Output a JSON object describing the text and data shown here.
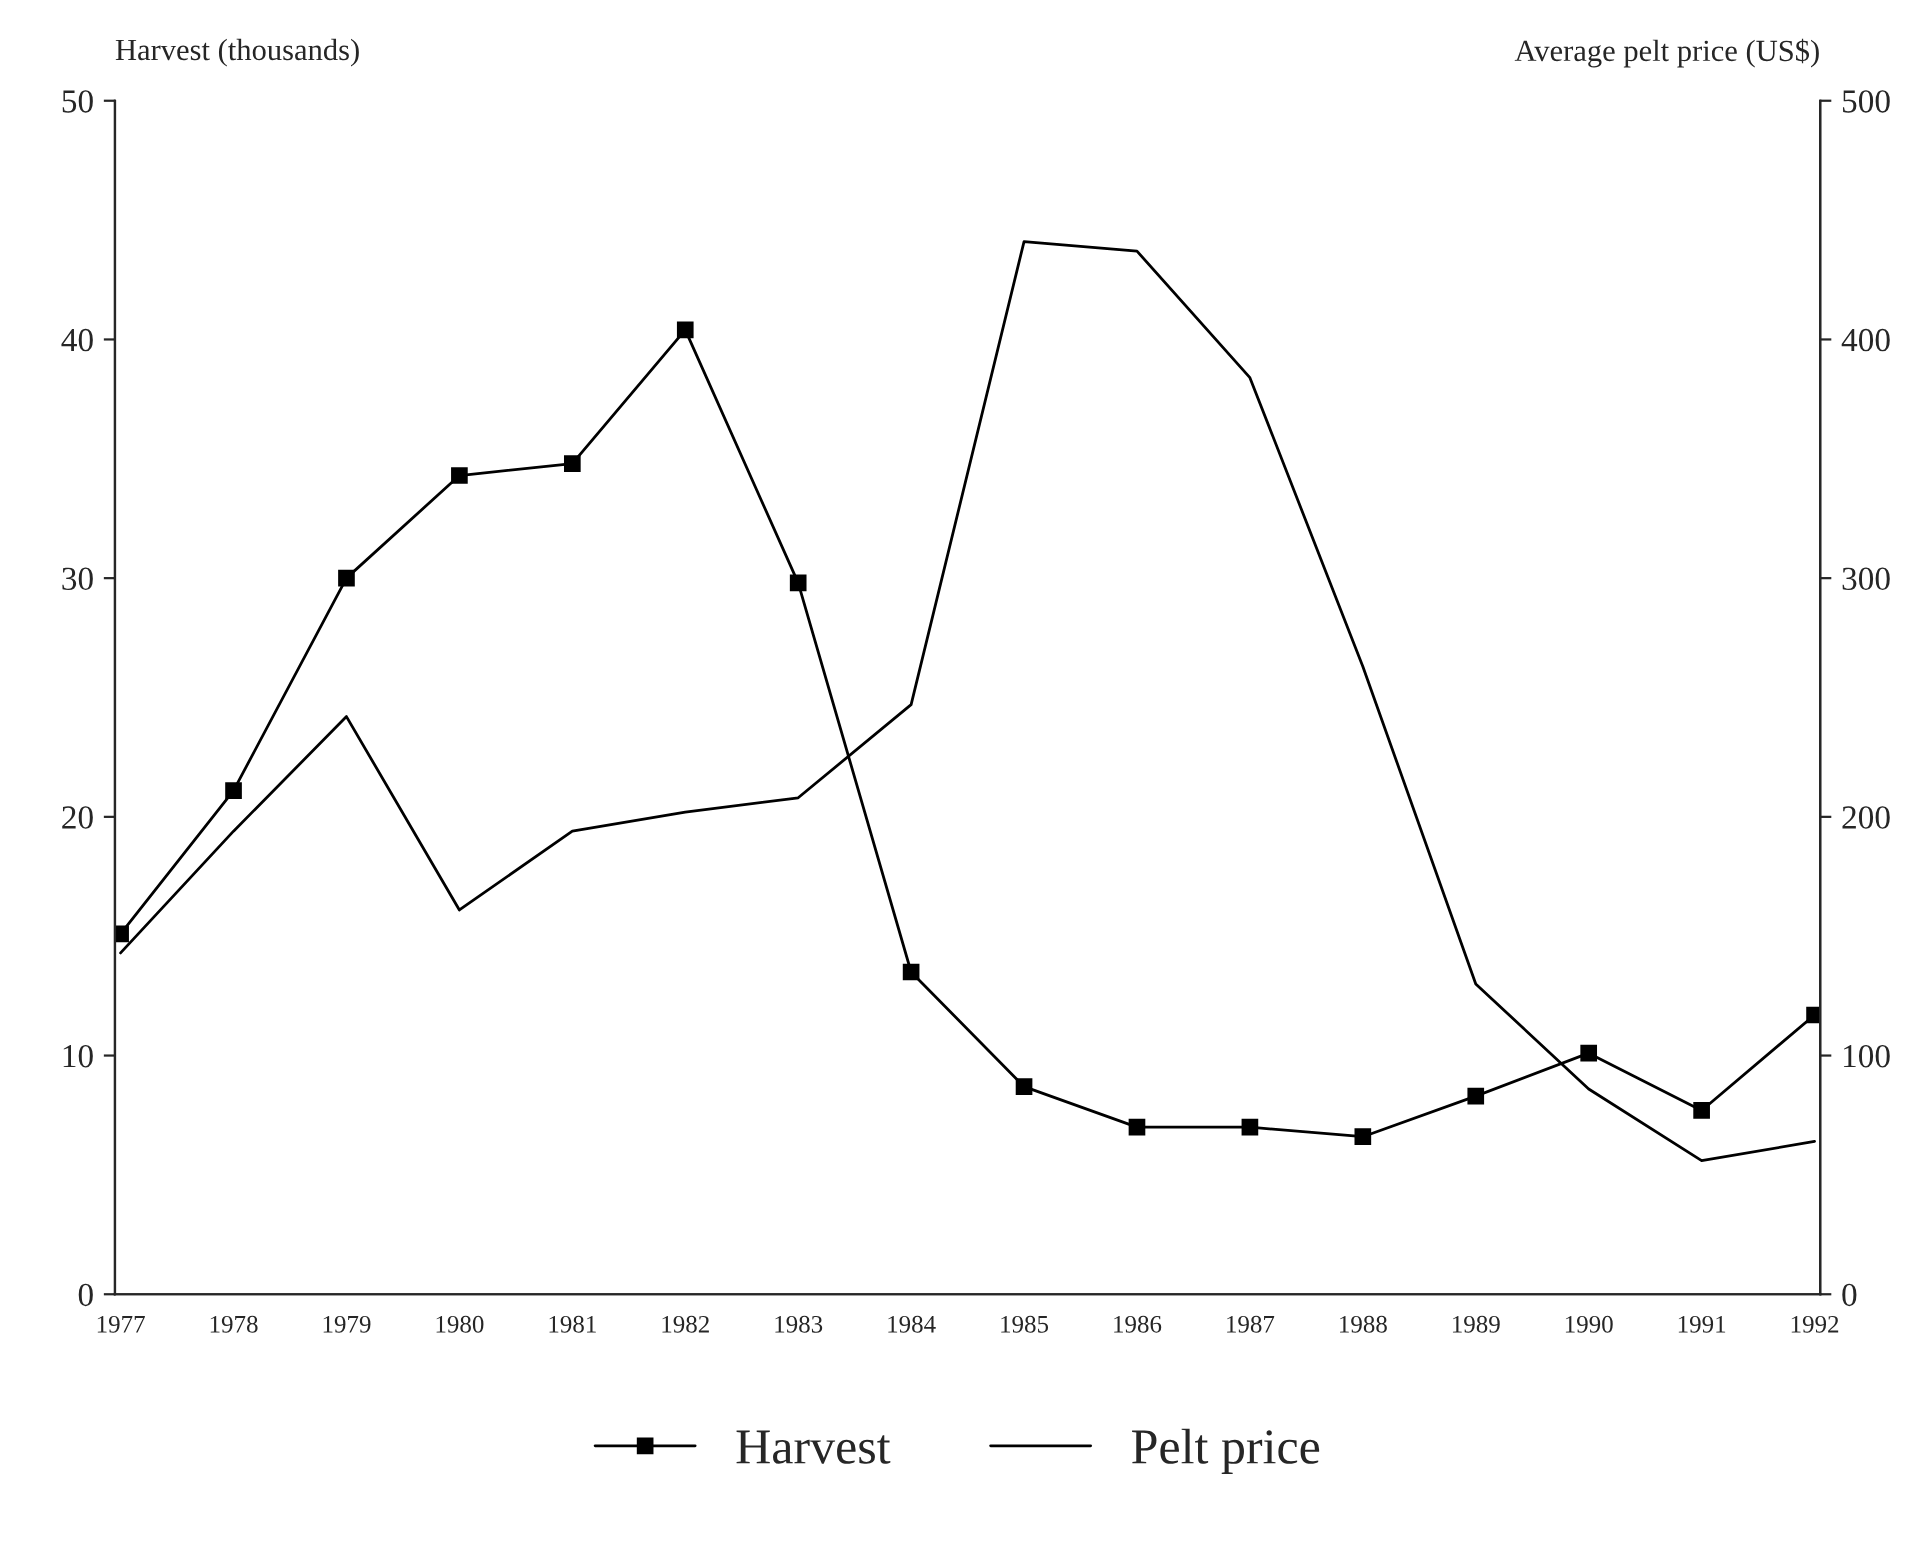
{
  "chart_data": {
    "type": "line",
    "ylabel": "Harvest (thousands)",
    "y2label": "Average pelt price (US$)",
    "categories": [
      "1977",
      "1978",
      "1979",
      "1980",
      "1981",
      "1982",
      "1983",
      "1984",
      "1985",
      "1986",
      "1987",
      "1988",
      "1989",
      "1990",
      "1991",
      "1992"
    ],
    "series": [
      {
        "name": "Harvest",
        "color": "#000000",
        "marker": "square",
        "values": [
          15.1,
          21.1,
          30.0,
          34.3,
          34.8,
          40.4,
          29.8,
          13.5,
          8.7,
          7.0,
          7.0,
          6.6,
          8.3,
          10.1,
          7.7,
          11.7
        ]
      },
      {
        "name": "Pelt price",
        "color": "#000000",
        "marker": "none",
        "axis": "y2",
        "values": [
          143,
          194,
          242,
          161,
          194,
          202,
          208,
          247,
          441,
          437,
          384,
          263,
          130,
          86,
          56,
          64
        ]
      }
    ],
    "ylim": [
      0,
      50
    ],
    "yticks": [
      0,
      10,
      20,
      30,
      40,
      50
    ],
    "y2lim": [
      0,
      500
    ],
    "y2ticks": [
      0,
      100,
      200,
      300,
      400,
      500
    ],
    "grid": false,
    "legend": "bottom",
    "line_style": "solid"
  }
}
